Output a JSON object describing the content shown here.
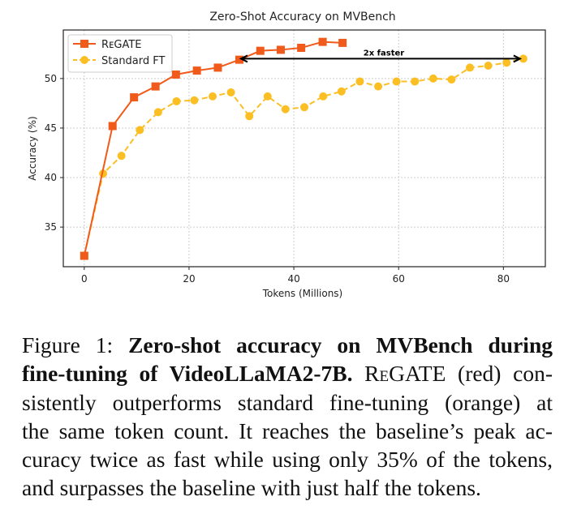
{
  "chart_data": {
    "type": "line",
    "title": "Zero-Shot Accuracy on MVBench",
    "xlabel": "Tokens (Millions)",
    "ylabel": "Accuracy (%)",
    "xlim": [
      -4,
      88
    ],
    "ylim": [
      31,
      54.9
    ],
    "xticks": [
      0,
      20,
      40,
      60,
      80
    ],
    "yticks": [
      35,
      40,
      45,
      50
    ],
    "grid": true,
    "legend_position": "top-left",
    "series": [
      {
        "name": "RᴇGATE",
        "color": "#f05a1a",
        "marker": "square",
        "linestyle": "solid",
        "x": [
          0,
          5.4,
          9.5,
          13.6,
          17.5,
          21.5,
          25.5,
          29.6,
          33.6,
          37.5,
          41.4,
          45.5,
          49.3
        ],
        "y": [
          32.1,
          45.2,
          48.1,
          49.2,
          50.4,
          50.8,
          51.1,
          51.9,
          52.8,
          52.9,
          53.1,
          53.7,
          53.6
        ]
      },
      {
        "name": "Standard FT",
        "color": "#fbbf24",
        "marker": "circle",
        "linestyle": "dashed",
        "x": [
          0,
          3.6,
          7.1,
          10.6,
          14.1,
          17.6,
          21.0,
          24.5,
          28.0,
          31.5,
          35.0,
          38.4,
          42.0,
          45.6,
          49.1,
          52.6,
          56.1,
          59.6,
          63.1,
          66.6,
          70.1,
          73.6,
          77.1,
          80.6,
          83.8
        ],
        "y": [
          32.1,
          40.4,
          42.2,
          44.8,
          46.6,
          47.7,
          47.8,
          48.2,
          48.6,
          46.2,
          48.2,
          46.9,
          47.1,
          48.2,
          48.7,
          49.7,
          49.2,
          49.7,
          49.7,
          50.0,
          49.9,
          51.1,
          51.3,
          51.6,
          52.0
        ]
      }
    ],
    "annotation": {
      "text": "2x faster",
      "arrow_from_x": 83.8,
      "arrow_to_x": 29.6,
      "arrow_y": 52.0
    }
  },
  "caption": {
    "l1_a": "Figure 1: ",
    "l1_b": "Zero-shot accuracy on MVBench during",
    "l2_a": "fine-tuning of VideoLLaMA2-7B.",
    "l2_sc": " ReGATE",
    "l2_b": " (red) con-",
    "l3": "sistently outperforms standard fine-tuning (orange) at",
    "l4": "the same token count. It reaches the baseline’s peak ac-",
    "l5": "curacy twice as fast while using only 35% of the tokens,",
    "l6": "and surpasses the baseline with just half the tokens."
  }
}
